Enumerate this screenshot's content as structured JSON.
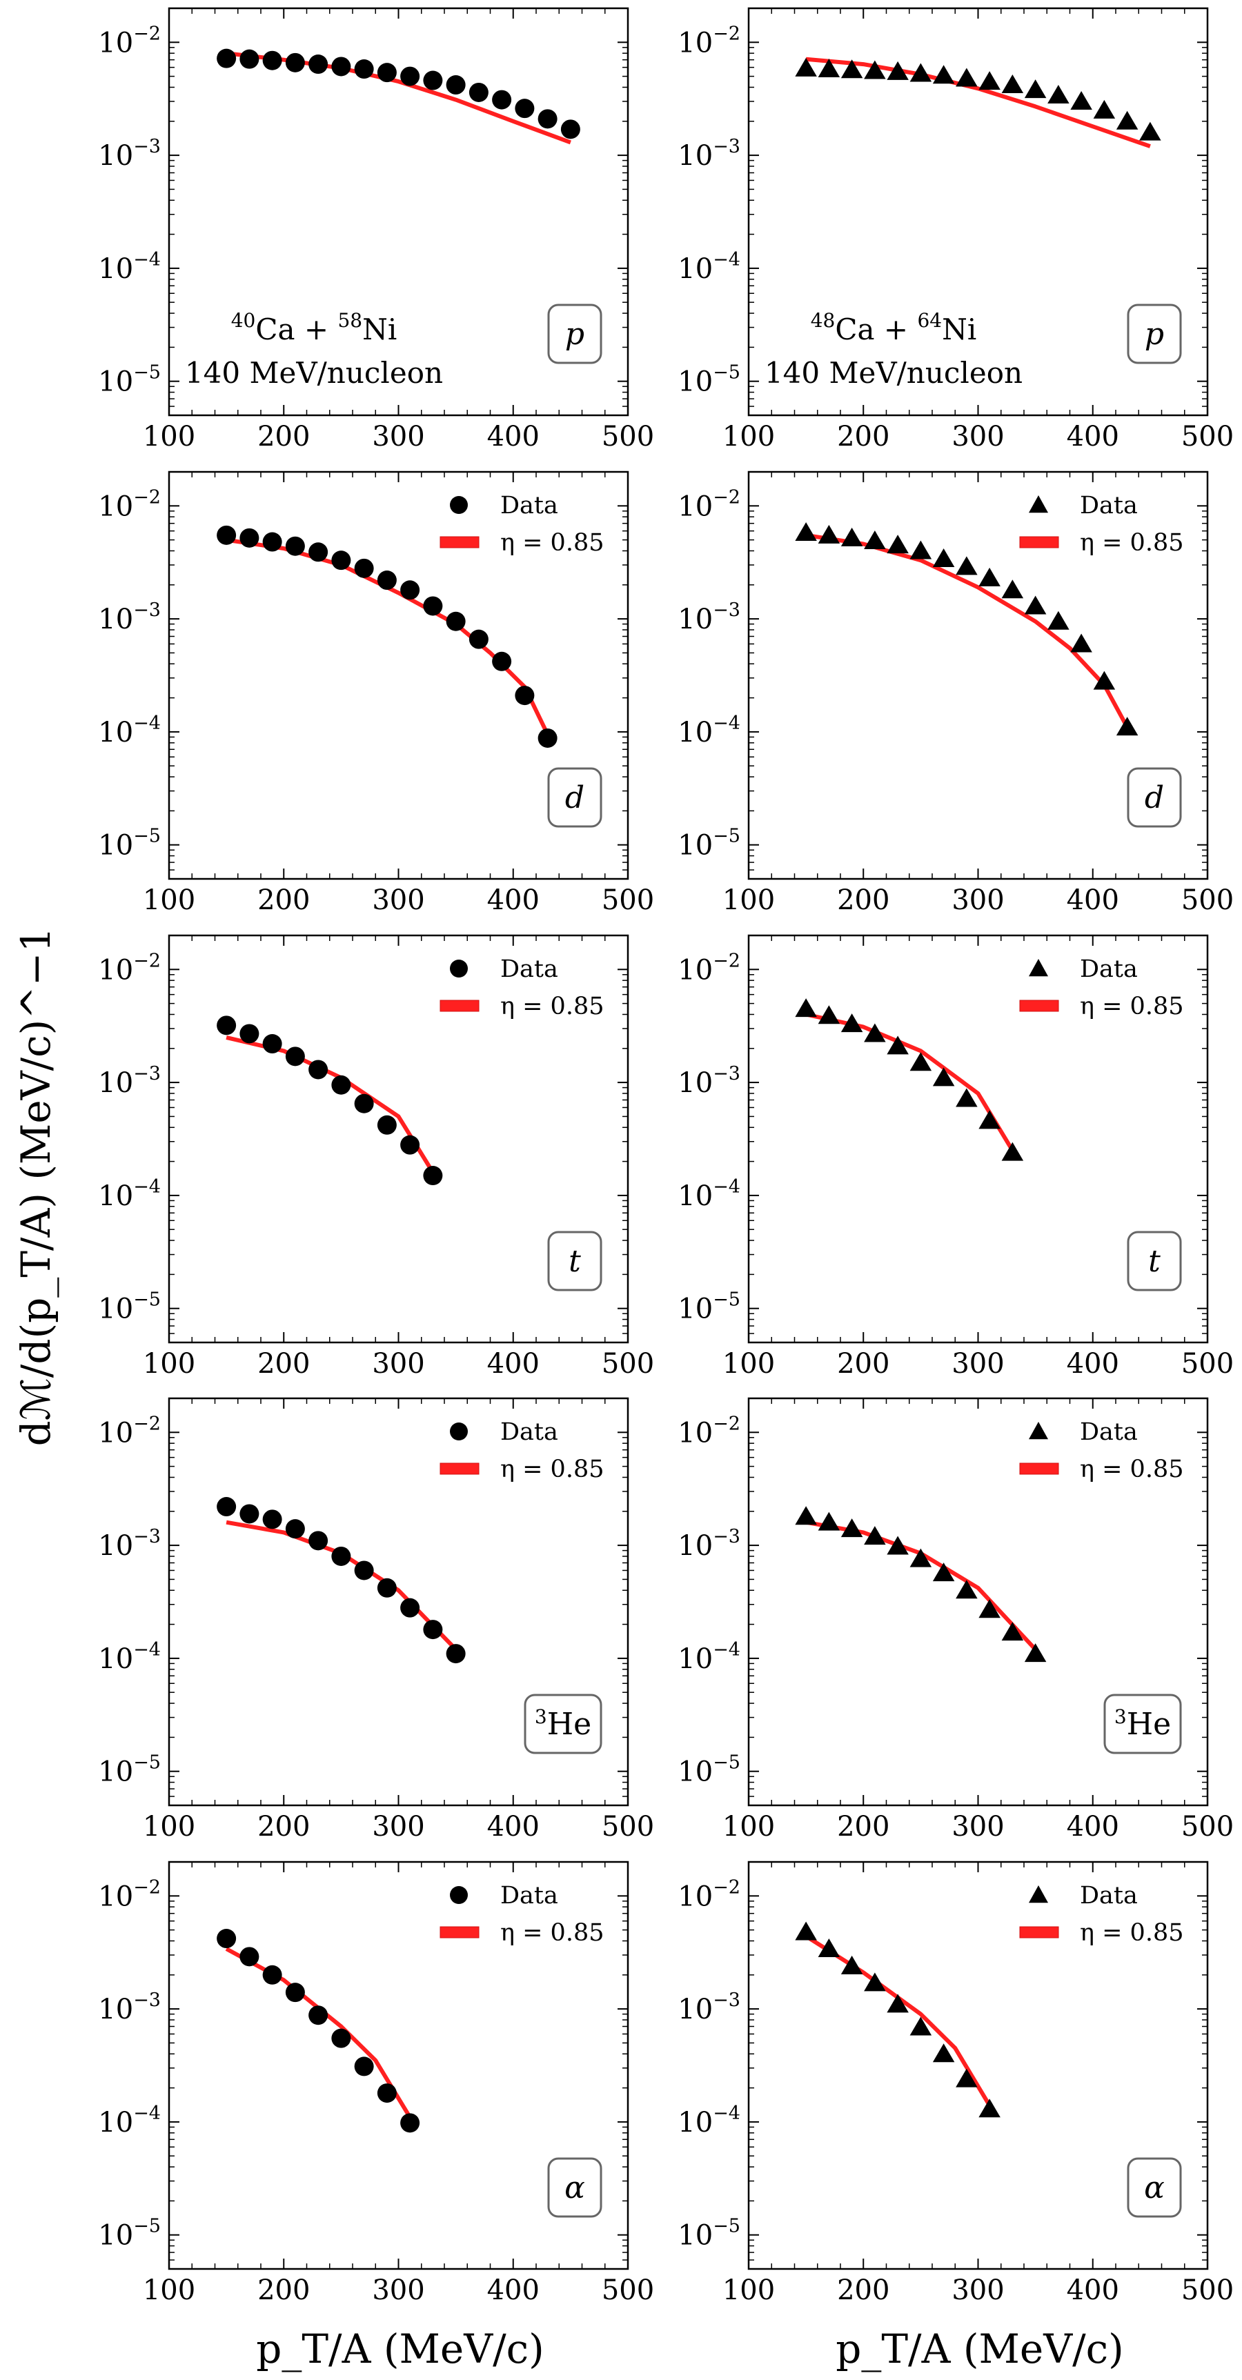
{
  "chart_data": {
    "type": "scatter",
    "layout": "5x2 grid of panels, shared x range per panel",
    "y_label": "dℳ/d(p_T/A) (MeV/c)^−1",
    "x_label": "p_T/A (MeV/c)",
    "x_tick_labels": [
      "100",
      "200",
      "300",
      "400",
      "500"
    ],
    "y_tick_labels": [
      {
        "base": "10",
        "exp": "−2"
      },
      {
        "base": "10",
        "exp": "−3"
      },
      {
        "base": "10",
        "exp": "−4"
      },
      {
        "base": "10",
        "exp": "−5"
      }
    ],
    "xlim": [
      100,
      500
    ],
    "ylim": [
      5e-06,
      0.02
    ],
    "y_scale": "log",
    "columns": [
      {
        "system": "40Ca + 58Ni",
        "marker": "circle",
        "annotation": {
          "z1": "40",
          "e1": "Ca",
          "op": "+",
          "z2": "58",
          "e2": "Ni",
          "energy": "140 MeV/nucleon"
        }
      },
      {
        "system": "48Ca + 64Ni",
        "marker": "triangle",
        "annotation": {
          "z1": "48",
          "e1": "Ca",
          "op": "+",
          "z2": "64",
          "e2": "Ni",
          "energy": "140 MeV/nucleon"
        }
      }
    ],
    "legend": {
      "data_label": "Data",
      "model_label": "η = 0.85",
      "placement": "top-right"
    },
    "colors": {
      "data": "#000000",
      "model": "#ff2020"
    },
    "particles": [
      {
        "label": "p",
        "show_legend": false,
        "panels": [
          {
            "x": [
              150,
              170,
              190,
              210,
              230,
              250,
              270,
              290,
              310,
              330,
              350,
              370,
              390,
              410,
              430,
              450
            ],
            "data": [
              0.0072,
              0.0071,
              0.0069,
              0.0066,
              0.0064,
              0.0061,
              0.0058,
              0.0054,
              0.005,
              0.0046,
              0.0042,
              0.0036,
              0.0031,
              0.0026,
              0.0021,
              0.0017
            ],
            "model_x": [
              150,
              200,
              250,
              300,
              350,
              400,
              450
            ],
            "model": [
              0.008,
              0.007,
              0.0059,
              0.0045,
              0.0031,
              0.002,
              0.0013
            ]
          },
          {
            "x": [
              150,
              170,
              190,
              210,
              230,
              250,
              270,
              290,
              310,
              330,
              350,
              370,
              390,
              410,
              430,
              450
            ],
            "data": [
              0.0059,
              0.0058,
              0.0057,
              0.0056,
              0.0055,
              0.0053,
              0.0051,
              0.0048,
              0.0045,
              0.0042,
              0.0038,
              0.0034,
              0.003,
              0.0025,
              0.002,
              0.0016
            ],
            "model_x": [
              150,
              200,
              250,
              300,
              350,
              400,
              450
            ],
            "model": [
              0.0071,
              0.0064,
              0.0052,
              0.0039,
              0.0027,
              0.0018,
              0.0012
            ]
          }
        ]
      },
      {
        "label": "d",
        "show_legend": true,
        "panels": [
          {
            "x": [
              150,
              170,
              190,
              210,
              230,
              250,
              270,
              290,
              310,
              330,
              350,
              370,
              390,
              410,
              430
            ],
            "data": [
              0.0055,
              0.0052,
              0.0048,
              0.0044,
              0.0039,
              0.0033,
              0.0028,
              0.0022,
              0.0018,
              0.0013,
              0.00095,
              0.00066,
              0.00042,
              0.00021,
              8.8e-05
            ],
            "model_x": [
              150,
              200,
              250,
              300,
              350,
              380,
              410,
              430
            ],
            "model": [
              0.005,
              0.0042,
              0.003,
              0.0017,
              0.0009,
              0.0005,
              0.00025,
              9.5e-05
            ]
          },
          {
            "x": [
              150,
              170,
              190,
              210,
              230,
              250,
              270,
              290,
              310,
              330,
              350,
              370,
              390,
              410,
              430
            ],
            "data": [
              0.0058,
              0.0055,
              0.0052,
              0.0049,
              0.0045,
              0.004,
              0.0034,
              0.0029,
              0.0023,
              0.0018,
              0.0013,
              0.00095,
              0.0006,
              0.00028,
              0.00011
            ],
            "model_x": [
              150,
              200,
              250,
              300,
              350,
              380,
              410,
              430
            ],
            "model": [
              0.0055,
              0.0046,
              0.0033,
              0.0019,
              0.00095,
              0.00055,
              0.00026,
              0.00011
            ]
          }
        ]
      },
      {
        "label": "t",
        "show_legend": true,
        "panels": [
          {
            "x": [
              150,
              170,
              190,
              210,
              230,
              250,
              270,
              290,
              310,
              330
            ],
            "data": [
              0.0032,
              0.0027,
              0.0022,
              0.0017,
              0.0013,
              0.00095,
              0.00065,
              0.00042,
              0.00028,
              0.00015
            ],
            "model_x": [
              150,
              200,
              250,
              300,
              330
            ],
            "model": [
              0.0025,
              0.0019,
              0.0011,
              0.0005,
              0.00016
            ]
          },
          {
            "x": [
              150,
              170,
              190,
              210,
              230,
              250,
              270,
              290,
              310,
              330
            ],
            "data": [
              0.0045,
              0.0039,
              0.0033,
              0.0027,
              0.0021,
              0.0015,
              0.0011,
              0.00072,
              0.00046,
              0.00024
            ],
            "model_x": [
              150,
              200,
              250,
              300,
              330
            ],
            "model": [
              0.004,
              0.0031,
              0.0019,
              0.0008,
              0.00025
            ]
          }
        ]
      },
      {
        "label": "3He",
        "show_legend": true,
        "panels": [
          {
            "x": [
              150,
              170,
              190,
              210,
              230,
              250,
              270,
              290,
              310,
              330,
              350
            ],
            "data": [
              0.0022,
              0.0019,
              0.0017,
              0.0014,
              0.0011,
              0.0008,
              0.0006,
              0.00042,
              0.00028,
              0.00018,
              0.00011
            ],
            "model_x": [
              150,
              200,
              250,
              300,
              350
            ],
            "model": [
              0.0016,
              0.0013,
              0.00085,
              0.0004,
              0.00012
            ]
          },
          {
            "x": [
              150,
              170,
              190,
              210,
              230,
              250,
              270,
              290,
              310,
              330,
              350
            ],
            "data": [
              0.0018,
              0.0016,
              0.0014,
              0.0012,
              0.00098,
              0.00076,
              0.00057,
              0.0004,
              0.00027,
              0.00017,
              0.00011
            ],
            "model_x": [
              150,
              200,
              250,
              300,
              350
            ],
            "model": [
              0.0016,
              0.0013,
              0.00085,
              0.00042,
              0.00012
            ]
          }
        ]
      },
      {
        "label": "α",
        "show_legend": true,
        "panels": [
          {
            "x": [
              150,
              170,
              190,
              210,
              230,
              250,
              270,
              290,
              310
            ],
            "data": [
              0.0042,
              0.0029,
              0.002,
              0.0014,
              0.00088,
              0.00055,
              0.00031,
              0.00018,
              9.8e-05
            ],
            "model_x": [
              150,
              200,
              250,
              280,
              310
            ],
            "model": [
              0.0034,
              0.0018,
              0.0007,
              0.00035,
              0.00011
            ]
          },
          {
            "x": [
              150,
              170,
              190,
              210,
              230,
              250,
              270,
              290,
              310
            ],
            "data": [
              0.0048,
              0.0034,
              0.0024,
              0.0017,
              0.0011,
              0.00069,
              0.0004,
              0.00024,
              0.00013
            ],
            "model_x": [
              150,
              200,
              250,
              280,
              310
            ],
            "model": [
              0.0044,
              0.0021,
              0.0009,
              0.00045,
              0.00014
            ]
          }
        ]
      }
    ]
  }
}
